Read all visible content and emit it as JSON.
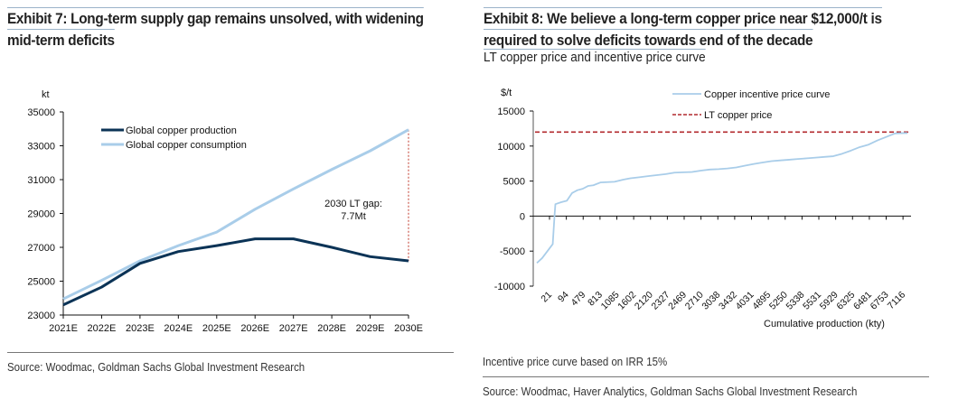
{
  "exhibit7": {
    "title_line1": "Exhibit 7: Long-term supply gap remains unsolved, with widening",
    "title_line2": "mid-term deficits",
    "source": "Source: Woodmac, Goldman Sachs Global Investment Research"
  },
  "exhibit8": {
    "title_line1": "Exhibit 8: We believe a long-term copper price near $12,000/t is",
    "title_line2": "required to solve deficits towards end of the decade",
    "subtitle": "LT copper price and incentive price curve",
    "note": "Incentive price curve based on IRR 15%",
    "source": "Source: Woodmac, Haver Analytics, Goldman Sachs Global Investment Research"
  },
  "colors": {
    "production": "#0b3356",
    "consumption": "#a9cde9",
    "lt_price": "#b22a2e",
    "gap_line": "#c0392b"
  },
  "chart_data": [
    {
      "type": "line",
      "title": "Long-term supply gap remains unsolved, with widening mid-term deficits",
      "ylabel": "kt",
      "xlabel": "",
      "ylim": [
        23000,
        35000
      ],
      "yticks": [
        23000,
        25000,
        27000,
        29000,
        31000,
        33000,
        35000
      ],
      "categories": [
        "2021E",
        "2022E",
        "2023E",
        "2024E",
        "2025E",
        "2026E",
        "2027E",
        "2028E",
        "2029E",
        "2030E"
      ],
      "series": [
        {
          "name": "Global copper production",
          "values": [
            23600,
            24650,
            26050,
            26750,
            27100,
            27500,
            27500,
            27000,
            26450,
            26200
          ]
        },
        {
          "name": "Global copper consumption",
          "values": [
            23950,
            25050,
            26200,
            27100,
            27900,
            29250,
            30450,
            31600,
            32700,
            33950
          ]
        }
      ],
      "annotation": {
        "text_line1": "2030 LT gap:",
        "text_line2": "7.7Mt",
        "category": "2030E"
      },
      "legend": "top-left",
      "grid": false
    },
    {
      "type": "line",
      "title": "LT copper price and incentive price curve",
      "ylabel": "$/t",
      "xlabel": "Cumulative production (kty)",
      "ylim": [
        -10000,
        15000
      ],
      "yticks": [
        -10000,
        -5000,
        0,
        5000,
        10000,
        15000
      ],
      "xtick_labels": [
        "21",
        "94",
        "479",
        "813",
        "1085",
        "1602",
        "2120",
        "2327",
        "2469",
        "2710",
        "3038",
        "3432",
        "4031",
        "4895",
        "5250",
        "5338",
        "5531",
        "5929",
        "6325",
        "6481",
        "6753",
        "7116"
      ],
      "series": [
        {
          "name": "Copper incentive price curve",
          "style": "solid",
          "x": [
            0,
            0.3,
            0.6,
            0.9,
            1.0,
            1.05,
            1.4,
            1.7,
            2.0,
            2.3,
            2.6,
            2.9,
            3.2,
            3.6,
            4.0,
            4.4,
            4.9,
            5.3,
            5.8,
            6.3,
            6.8,
            7.3,
            7.8,
            8.3,
            8.8,
            9.3,
            9.8,
            10.3,
            10.8,
            11.3,
            11.8,
            12.3,
            12.8,
            13.3,
            13.8,
            14.3,
            14.8,
            15.3,
            15.8,
            16.3,
            16.8,
            17.3,
            17.8,
            18.3,
            18.8,
            19.3,
            19.8,
            20.3,
            20.8,
            21.0
          ],
          "values": [
            -6700,
            -6000,
            -5000,
            -4000,
            0,
            1700,
            2000,
            2200,
            3300,
            3700,
            3900,
            4300,
            4400,
            4800,
            4850,
            4900,
            5200,
            5400,
            5550,
            5700,
            5850,
            6000,
            6200,
            6250,
            6300,
            6500,
            6650,
            6700,
            6800,
            6950,
            7200,
            7450,
            7650,
            7850,
            7950,
            8050,
            8150,
            8250,
            8350,
            8450,
            8550,
            8900,
            9350,
            9850,
            10200,
            10800,
            11300,
            11800,
            11850,
            11850
          ]
        },
        {
          "name": "LT copper price",
          "style": "dashed",
          "constant": 12000
        }
      ],
      "legend": "top-right",
      "grid": false
    }
  ]
}
